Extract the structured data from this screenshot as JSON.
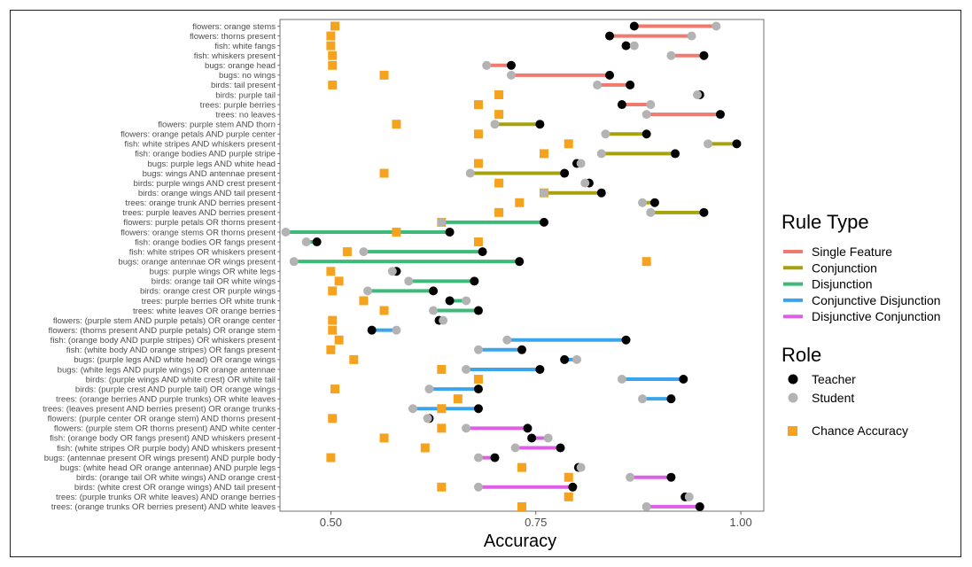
{
  "chart_data": {
    "type": "dumbbell",
    "xlabel": "Accuracy",
    "xlim": [
      0.438,
      1.028
    ],
    "x_ticks": [
      {
        "value": 0.5,
        "label": "0.50"
      },
      {
        "value": 0.75,
        "label": "0.75"
      },
      {
        "value": 1.0,
        "label": "1.00"
      }
    ],
    "grid": false,
    "legend_position": "right",
    "colors": {
      "Single Feature": "#f07a6f",
      "Conjunction": "#a6a20d",
      "Disjunction": "#3cba77",
      "Conjunctive Disjunction": "#3aa5ec",
      "Disjunctive Conjunction": "#dc5fe6",
      "Teacher": "#000000",
      "Student": "#b3b3b3",
      "Chance Accuracy": "#f6a21c"
    },
    "legend": {
      "rule_type_title": "Rule Type",
      "rule_types": [
        "Single Feature",
        "Conjunction",
        "Disjunction",
        "Conjunctive Disjunction",
        "Disjunctive Conjunction"
      ],
      "role_title": "Role",
      "roles": [
        "Teacher",
        "Student"
      ],
      "chance_label": "Chance Accuracy"
    },
    "rows": [
      {
        "label": "flowers: orange stems",
        "type": "Single Feature",
        "teacher": 0.87,
        "student": 0.97,
        "chance": 0.505
      },
      {
        "label": "flowers: thorns present",
        "type": "Single Feature",
        "teacher": 0.84,
        "student": 0.94,
        "chance": 0.5
      },
      {
        "label": "fish: white fangs",
        "type": "Single Feature",
        "teacher": 0.86,
        "student": 0.87,
        "chance": 0.5
      },
      {
        "label": "fish: whiskers present",
        "type": "Single Feature",
        "teacher": 0.955,
        "student": 0.915,
        "chance": 0.502
      },
      {
        "label": "bugs: orange head",
        "type": "Single Feature",
        "teacher": 0.72,
        "student": 0.69,
        "chance": 0.502
      },
      {
        "label": "bugs: no wings",
        "type": "Single Feature",
        "teacher": 0.84,
        "student": 0.72,
        "chance": 0.565
      },
      {
        "label": "birds: tail present",
        "type": "Single Feature",
        "teacher": 0.865,
        "student": 0.825,
        "chance": 0.502
      },
      {
        "label": "birds: purple tail",
        "type": "Single Feature",
        "teacher": 0.95,
        "student": 0.947,
        "chance": 0.705
      },
      {
        "label": "trees: purple berries",
        "type": "Single Feature",
        "teacher": 0.855,
        "student": 0.89,
        "chance": 0.68
      },
      {
        "label": "trees: no leaves",
        "type": "Single Feature",
        "teacher": 0.975,
        "student": 0.885,
        "chance": 0.705
      },
      {
        "label": "flowers: purple stem AND thorn",
        "type": "Conjunction",
        "teacher": 0.755,
        "student": 0.7,
        "chance": 0.58
      },
      {
        "label": "flowers: orange petals AND purple center",
        "type": "Conjunction",
        "teacher": 0.885,
        "student": 0.835,
        "chance": 0.68
      },
      {
        "label": "fish: white stripes AND whiskers  present",
        "type": "Conjunction",
        "teacher": 0.995,
        "student": 0.96,
        "chance": 0.79
      },
      {
        "label": "fish: orange bodies AND purple stripe",
        "type": "Conjunction",
        "teacher": 0.92,
        "student": 0.83,
        "chance": 0.76
      },
      {
        "label": "bugs: purple legs AND white head",
        "type": "Conjunction",
        "teacher": 0.8,
        "student": 0.805,
        "chance": 0.68
      },
      {
        "label": "bugs: wings AND antennae present",
        "type": "Conjunction",
        "teacher": 0.785,
        "student": 0.67,
        "chance": 0.565
      },
      {
        "label": "birds: purple wings AND crest present",
        "type": "Conjunction",
        "teacher": 0.815,
        "student": 0.81,
        "chance": 0.705
      },
      {
        "label": "birds: orange wings AND tail present",
        "type": "Conjunction",
        "teacher": 0.83,
        "student": 0.76,
        "chance": 0.76
      },
      {
        "label": "trees: orange trunk AND berries present",
        "type": "Conjunction",
        "teacher": 0.895,
        "student": 0.88,
        "chance": 0.73
      },
      {
        "label": "trees: purple leaves AND berries present",
        "type": "Conjunction",
        "teacher": 0.955,
        "student": 0.89,
        "chance": 0.705
      },
      {
        "label": "flowers: purple petals OR thorns present",
        "type": "Disjunction",
        "teacher": 0.76,
        "student": 0.635,
        "chance": 0.635
      },
      {
        "label": "flowers: orange stems OR thorns present",
        "type": "Disjunction",
        "teacher": 0.645,
        "student": 0.445,
        "chance": 0.58
      },
      {
        "label": "fish: orange bodies OR fangs present",
        "type": "Disjunction",
        "teacher": 0.483,
        "student": 0.47,
        "chance": 0.68
      },
      {
        "label": "fish: white stripes OR whiskers present",
        "type": "Disjunction",
        "teacher": 0.685,
        "student": 0.54,
        "chance": 0.52
      },
      {
        "label": "bugs: orange antennae OR wings present",
        "type": "Disjunction",
        "teacher": 0.73,
        "student": 0.455,
        "chance": 0.885
      },
      {
        "label": "bugs: purple wings OR white legs",
        "type": "Disjunction",
        "teacher": 0.58,
        "student": 0.575,
        "chance": 0.5
      },
      {
        "label": "birds: orange tail OR white wings",
        "type": "Disjunction",
        "teacher": 0.675,
        "student": 0.595,
        "chance": 0.51
      },
      {
        "label": "birds: orange crest OR purple wings",
        "type": "Disjunction",
        "teacher": 0.625,
        "student": 0.545,
        "chance": 0.502
      },
      {
        "label": "trees: purple berries OR white trunk",
        "type": "Disjunction",
        "teacher": 0.645,
        "student": 0.665,
        "chance": 0.54
      },
      {
        "label": "trees: white leaves OR orange berries",
        "type": "Disjunction",
        "teacher": 0.68,
        "student": 0.625,
        "chance": 0.565
      },
      {
        "label": "flowers: (purple stem AND purple petals) OR orange center",
        "type": "Conjunctive Disjunction",
        "teacher": 0.632,
        "student": 0.637,
        "chance": 0.502
      },
      {
        "label": "flowers: (thorns present AND purple petals) OR orange stem",
        "type": "Conjunctive Disjunction",
        "teacher": 0.55,
        "student": 0.58,
        "chance": 0.502
      },
      {
        "label": "fish: (orange body AND purple stripes) OR whiskers present",
        "type": "Conjunctive Disjunction",
        "teacher": 0.86,
        "student": 0.715,
        "chance": 0.51
      },
      {
        "label": "fish: (white body AND orange stripes) OR fangs present",
        "type": "Conjunctive Disjunction",
        "teacher": 0.733,
        "student": 0.68,
        "chance": 0.5
      },
      {
        "label": "bugs: (purple legs AND white head) OR orange wings",
        "type": "Conjunctive Disjunction",
        "teacher": 0.785,
        "student": 0.8,
        "chance": 0.528
      },
      {
        "label": "bugs: (white legs AND purple wings) OR orange antennae",
        "type": "Conjunctive Disjunction",
        "teacher": 0.755,
        "student": 0.665,
        "chance": 0.635
      },
      {
        "label": "birds: (purple wings AND white crest) OR white tail",
        "type": "Conjunctive Disjunction",
        "teacher": 0.93,
        "student": 0.855,
        "chance": 0.68
      },
      {
        "label": "birds: (purple crest AND purple tail) OR orange wings",
        "type": "Conjunctive Disjunction",
        "teacher": 0.68,
        "student": 0.62,
        "chance": 0.505
      },
      {
        "label": "trees: (orange berries AND purple trunks) OR white leaves",
        "type": "Conjunctive Disjunction",
        "teacher": 0.915,
        "student": 0.88,
        "chance": 0.655
      },
      {
        "label": "trees: (leaves present AND berries present) OR orange trunks",
        "type": "Conjunctive Disjunction",
        "teacher": 0.68,
        "student": 0.6,
        "chance": 0.635
      },
      {
        "label": "flowers: (purple center OR orange stem) AND thorns present",
        "type": "Disjunctive Conjunction",
        "teacher": 0.62,
        "student": 0.618,
        "chance": 0.502
      },
      {
        "label": "flowers: (purple stem OR thorns present) AND white center",
        "type": "Disjunctive Conjunction",
        "teacher": 0.74,
        "student": 0.665,
        "chance": 0.635
      },
      {
        "label": "fish: (orange body OR fangs present) AND whiskers present",
        "type": "Disjunctive Conjunction",
        "teacher": 0.745,
        "student": 0.765,
        "chance": 0.565
      },
      {
        "label": "fish: (white stripes OR purple body) AND whiskers present",
        "type": "Disjunctive Conjunction",
        "teacher": 0.78,
        "student": 0.725,
        "chance": 0.615
      },
      {
        "label": "bugs: (antennae present OR wings present) AND purple body",
        "type": "Disjunctive Conjunction",
        "teacher": 0.7,
        "student": 0.68,
        "chance": 0.5
      },
      {
        "label": "bugs: (white head OR orange antennae) AND purple legs",
        "type": "Disjunctive Conjunction",
        "teacher": 0.802,
        "student": 0.805,
        "chance": 0.733
      },
      {
        "label": "birds: (orange tail OR white wings) AND orange crest",
        "type": "Disjunctive Conjunction",
        "teacher": 0.915,
        "student": 0.865,
        "chance": 0.79
      },
      {
        "label": "birds: (white crest OR orange wings) AND tail present",
        "type": "Disjunctive Conjunction",
        "teacher": 0.795,
        "student": 0.68,
        "chance": 0.635
      },
      {
        "label": "trees: (purple trunks OR white leaves) AND orange berries",
        "type": "Disjunctive Conjunction",
        "teacher": 0.932,
        "student": 0.937,
        "chance": 0.79
      },
      {
        "label": "trees: (orange trunks OR berries present) AND white leaves",
        "type": "Disjunctive Conjunction",
        "teacher": 0.95,
        "student": 0.885,
        "chance": 0.733
      }
    ]
  }
}
